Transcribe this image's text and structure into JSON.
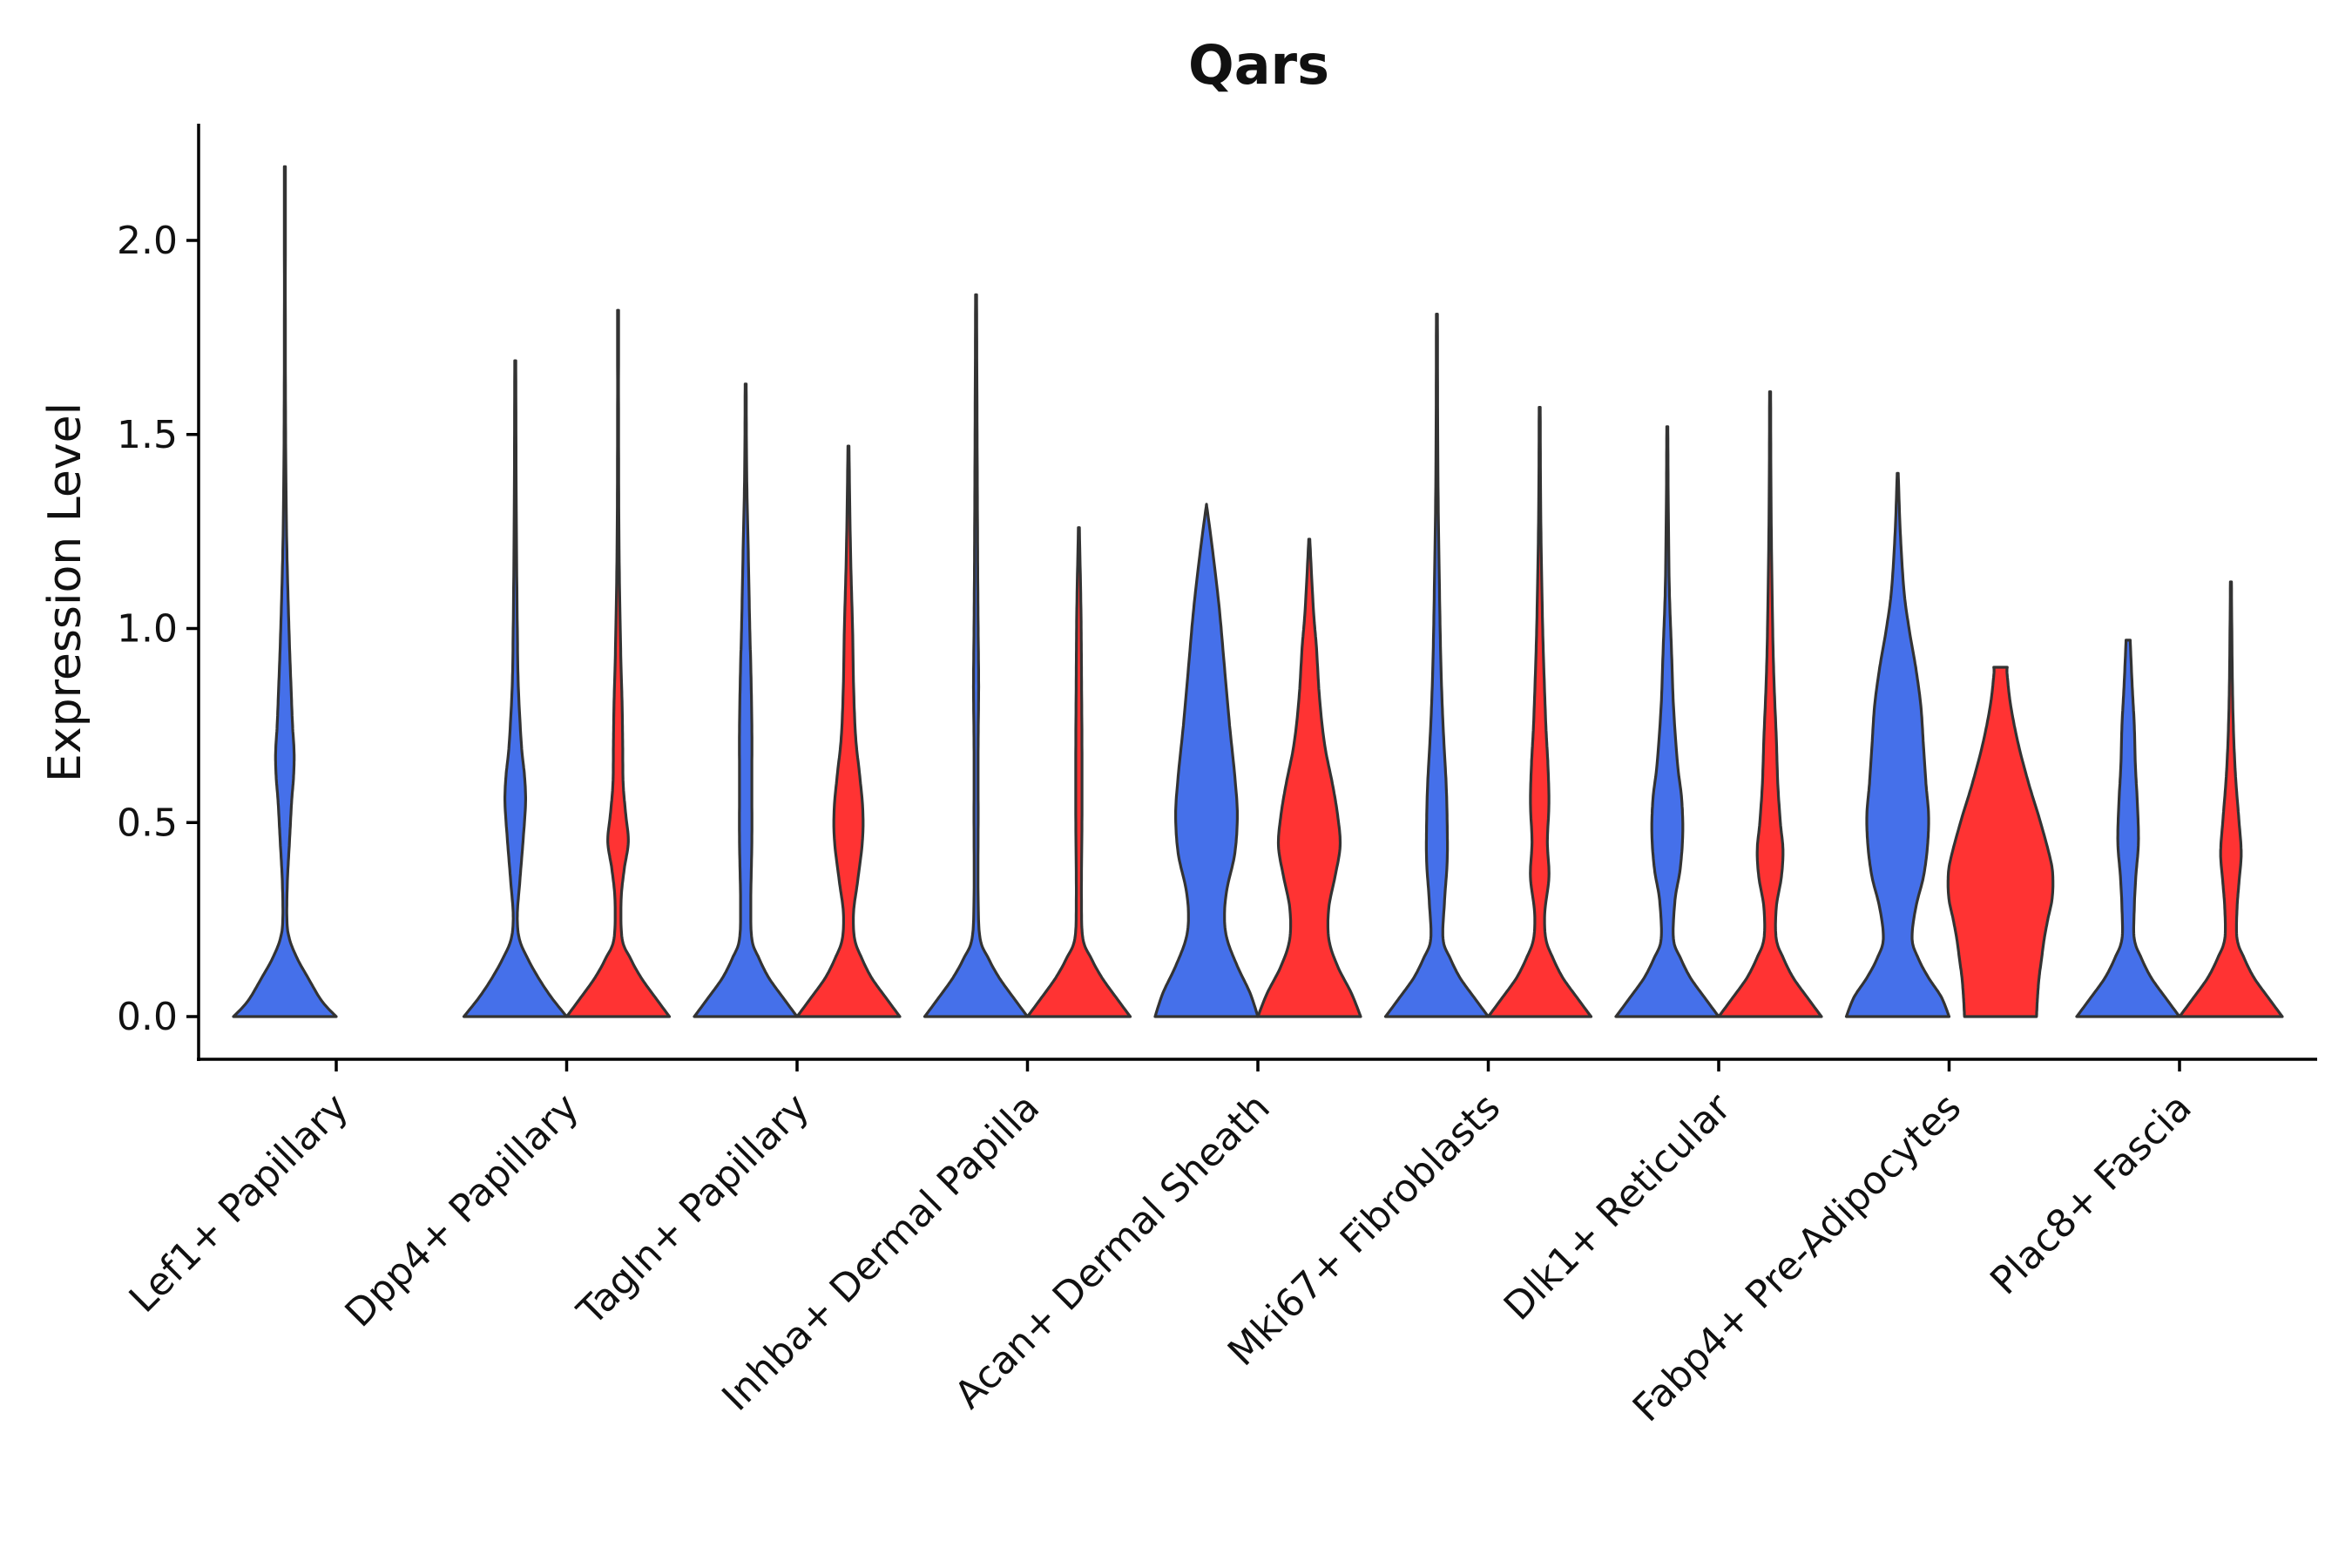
{
  "chart_data": {
    "type": "violin",
    "title": "Qars",
    "xlabel": "",
    "ylabel": "Expression Level",
    "ylim": [
      -0.11,
      2.3
    ],
    "yticks": [
      0.0,
      0.5,
      1.0,
      1.5,
      2.0
    ],
    "ytick_labels": [
      "0.0",
      "0.5",
      "1.0",
      "1.5",
      "2.0"
    ],
    "grid": false,
    "legend": "none",
    "series": [
      {
        "name": "group 1",
        "color": "#4570ea"
      },
      {
        "name": "group 2",
        "color": "#ff3333"
      }
    ],
    "categories": [
      "Lef1+ Papillary",
      "Dpp4+ Papillary",
      "Tagln+ Papillary",
      "Inhba+ Dermal Papilla",
      "Acan+ Dermal Sheath",
      "Mki67+ Fibroblasts",
      "Dlk1+ Reticular",
      "Fabp4+ Pre-Adipocytes",
      "Plac8+ Fascia"
    ],
    "violins": [
      {
        "category": "Lef1+ Papillary",
        "series": "group 1",
        "max": 2.19,
        "density": [
          [
            0,
            1.0
          ],
          [
            0.04,
            0.72
          ],
          [
            0.1,
            0.45
          ],
          [
            0.15,
            0.24
          ],
          [
            0.2,
            0.09
          ],
          [
            0.25,
            0.04
          ],
          [
            0.35,
            0.05
          ],
          [
            0.45,
            0.09
          ],
          [
            0.55,
            0.13
          ],
          [
            0.62,
            0.17
          ],
          [
            0.68,
            0.18
          ],
          [
            0.75,
            0.15
          ],
          [
            0.85,
            0.12
          ],
          [
            1.0,
            0.08
          ],
          [
            1.2,
            0.04
          ],
          [
            1.4,
            0.02
          ],
          [
            1.7,
            0.01
          ],
          [
            2.19,
            0.01
          ]
        ]
      },
      {
        "category": "Dpp4+ Papillary",
        "series": "group 1",
        "max": 1.69,
        "density": [
          [
            0,
            1.0
          ],
          [
            0.05,
            0.7
          ],
          [
            0.1,
            0.45
          ],
          [
            0.15,
            0.24
          ],
          [
            0.2,
            0.08
          ],
          [
            0.26,
            0.04
          ],
          [
            0.35,
            0.09
          ],
          [
            0.45,
            0.15
          ],
          [
            0.55,
            0.2
          ],
          [
            0.62,
            0.18
          ],
          [
            0.7,
            0.12
          ],
          [
            0.85,
            0.06
          ],
          [
            1.0,
            0.04
          ],
          [
            1.3,
            0.02
          ],
          [
            1.69,
            0.01
          ]
        ]
      },
      {
        "category": "Dpp4+ Papillary",
        "series": "group 2",
        "max": 1.82,
        "density": [
          [
            0,
            1.0
          ],
          [
            0.05,
            0.72
          ],
          [
            0.1,
            0.45
          ],
          [
            0.15,
            0.24
          ],
          [
            0.2,
            0.08
          ],
          [
            0.3,
            0.06
          ],
          [
            0.38,
            0.12
          ],
          [
            0.45,
            0.2
          ],
          [
            0.52,
            0.15
          ],
          [
            0.6,
            0.1
          ],
          [
            0.7,
            0.09
          ],
          [
            0.8,
            0.08
          ],
          [
            0.95,
            0.05
          ],
          [
            1.2,
            0.02
          ],
          [
            1.5,
            0.01
          ],
          [
            1.82,
            0.01
          ]
        ]
      },
      {
        "category": "Tagln+ Papillary",
        "series": "group 1",
        "max": 1.63,
        "density": [
          [
            0,
            1.0
          ],
          [
            0.05,
            0.72
          ],
          [
            0.1,
            0.45
          ],
          [
            0.15,
            0.26
          ],
          [
            0.2,
            0.12
          ],
          [
            0.3,
            0.1
          ],
          [
            0.45,
            0.12
          ],
          [
            0.6,
            0.12
          ],
          [
            0.75,
            0.12
          ],
          [
            0.9,
            0.1
          ],
          [
            1.0,
            0.08
          ],
          [
            1.2,
            0.05
          ],
          [
            1.4,
            0.02
          ],
          [
            1.63,
            0.01
          ]
        ]
      },
      {
        "category": "Tagln+ Papillary",
        "series": "group 2",
        "max": 1.47,
        "density": [
          [
            0,
            1.0
          ],
          [
            0.05,
            0.72
          ],
          [
            0.1,
            0.45
          ],
          [
            0.15,
            0.26
          ],
          [
            0.2,
            0.12
          ],
          [
            0.27,
            0.1
          ],
          [
            0.35,
            0.18
          ],
          [
            0.45,
            0.27
          ],
          [
            0.53,
            0.28
          ],
          [
            0.62,
            0.22
          ],
          [
            0.72,
            0.14
          ],
          [
            0.85,
            0.1
          ],
          [
            1.0,
            0.08
          ],
          [
            1.2,
            0.04
          ],
          [
            1.47,
            0.01
          ]
        ]
      },
      {
        "category": "Inhba+ Dermal Papilla",
        "series": "group 1",
        "max": 1.86,
        "density": [
          [
            0,
            1.0
          ],
          [
            0.05,
            0.72
          ],
          [
            0.1,
            0.45
          ],
          [
            0.15,
            0.24
          ],
          [
            0.2,
            0.08
          ],
          [
            0.3,
            0.04
          ],
          [
            0.5,
            0.04
          ],
          [
            0.7,
            0.04
          ],
          [
            0.85,
            0.05
          ],
          [
            1.0,
            0.04
          ],
          [
            1.2,
            0.03
          ],
          [
            1.5,
            0.02
          ],
          [
            1.86,
            0.01
          ]
        ]
      },
      {
        "category": "Inhba+ Dermal Papilla",
        "series": "group 2",
        "max": 1.26,
        "density": [
          [
            0,
            1.0
          ],
          [
            0.05,
            0.72
          ],
          [
            0.1,
            0.45
          ],
          [
            0.15,
            0.24
          ],
          [
            0.2,
            0.08
          ],
          [
            0.3,
            0.05
          ],
          [
            0.5,
            0.06
          ],
          [
            0.7,
            0.06
          ],
          [
            0.9,
            0.05
          ],
          [
            1.05,
            0.04
          ],
          [
            1.26,
            0.01
          ]
        ]
      },
      {
        "category": "Acan+ Dermal Sheath",
        "series": "group 1",
        "max": 1.32,
        "density": [
          [
            0,
            1.0
          ],
          [
            0.06,
            0.85
          ],
          [
            0.13,
            0.6
          ],
          [
            0.2,
            0.4
          ],
          [
            0.26,
            0.35
          ],
          [
            0.33,
            0.4
          ],
          [
            0.42,
            0.55
          ],
          [
            0.52,
            0.6
          ],
          [
            0.62,
            0.55
          ],
          [
            0.75,
            0.45
          ],
          [
            0.9,
            0.35
          ],
          [
            1.05,
            0.25
          ],
          [
            1.2,
            0.12
          ],
          [
            1.32,
            0.0
          ]
        ]
      },
      {
        "category": "Acan+ Dermal Sheath",
        "series": "group 2",
        "max": 1.23,
        "density": [
          [
            0,
            1.0
          ],
          [
            0.06,
            0.82
          ],
          [
            0.13,
            0.55
          ],
          [
            0.2,
            0.38
          ],
          [
            0.28,
            0.38
          ],
          [
            0.36,
            0.5
          ],
          [
            0.44,
            0.6
          ],
          [
            0.52,
            0.55
          ],
          [
            0.6,
            0.45
          ],
          [
            0.7,
            0.3
          ],
          [
            0.82,
            0.2
          ],
          [
            0.95,
            0.14
          ],
          [
            1.05,
            0.08
          ],
          [
            1.23,
            0.01
          ]
        ]
      },
      {
        "category": "Mki67+ Fibroblasts",
        "series": "group 1",
        "max": 1.81,
        "density": [
          [
            0,
            1.0
          ],
          [
            0.05,
            0.72
          ],
          [
            0.1,
            0.45
          ],
          [
            0.15,
            0.26
          ],
          [
            0.2,
            0.12
          ],
          [
            0.3,
            0.15
          ],
          [
            0.4,
            0.2
          ],
          [
            0.5,
            0.2
          ],
          [
            0.6,
            0.18
          ],
          [
            0.75,
            0.12
          ],
          [
            0.9,
            0.08
          ],
          [
            1.1,
            0.05
          ],
          [
            1.4,
            0.02
          ],
          [
            1.81,
            0.01
          ]
        ]
      },
      {
        "category": "Mki67+ Fibroblasts",
        "series": "group 2",
        "max": 1.57,
        "density": [
          [
            0,
            1.0
          ],
          [
            0.05,
            0.72
          ],
          [
            0.1,
            0.45
          ],
          [
            0.15,
            0.26
          ],
          [
            0.2,
            0.12
          ],
          [
            0.27,
            0.1
          ],
          [
            0.36,
            0.18
          ],
          [
            0.45,
            0.15
          ],
          [
            0.55,
            0.18
          ],
          [
            0.65,
            0.16
          ],
          [
            0.75,
            0.12
          ],
          [
            0.9,
            0.08
          ],
          [
            1.05,
            0.05
          ],
          [
            1.3,
            0.02
          ],
          [
            1.57,
            0.01
          ]
        ]
      },
      {
        "category": "Dlk1+ Reticular",
        "series": "group 1",
        "max": 1.52,
        "density": [
          [
            0,
            1.0
          ],
          [
            0.05,
            0.72
          ],
          [
            0.1,
            0.45
          ],
          [
            0.15,
            0.26
          ],
          [
            0.2,
            0.12
          ],
          [
            0.3,
            0.15
          ],
          [
            0.38,
            0.25
          ],
          [
            0.47,
            0.3
          ],
          [
            0.56,
            0.28
          ],
          [
            0.65,
            0.2
          ],
          [
            0.8,
            0.12
          ],
          [
            0.95,
            0.08
          ],
          [
            1.1,
            0.04
          ],
          [
            1.3,
            0.02
          ],
          [
            1.52,
            0.01
          ]
        ]
      },
      {
        "category": "Dlk1+ Reticular",
        "series": "group 2",
        "max": 1.61,
        "density": [
          [
            0,
            1.0
          ],
          [
            0.05,
            0.72
          ],
          [
            0.1,
            0.45
          ],
          [
            0.15,
            0.26
          ],
          [
            0.2,
            0.12
          ],
          [
            0.28,
            0.12
          ],
          [
            0.36,
            0.22
          ],
          [
            0.43,
            0.25
          ],
          [
            0.5,
            0.2
          ],
          [
            0.6,
            0.15
          ],
          [
            0.72,
            0.12
          ],
          [
            0.85,
            0.08
          ],
          [
            1.0,
            0.05
          ],
          [
            1.3,
            0.02
          ],
          [
            1.61,
            0.01
          ]
        ]
      },
      {
        "category": "Fabp4+ Pre-Adipocytes",
        "series": "group 1",
        "max": 1.4,
        "density": [
          [
            0,
            1.0
          ],
          [
            0.05,
            0.85
          ],
          [
            0.1,
            0.6
          ],
          [
            0.15,
            0.4
          ],
          [
            0.2,
            0.28
          ],
          [
            0.28,
            0.35
          ],
          [
            0.36,
            0.5
          ],
          [
            0.44,
            0.58
          ],
          [
            0.52,
            0.6
          ],
          [
            0.6,
            0.55
          ],
          [
            0.7,
            0.5
          ],
          [
            0.8,
            0.45
          ],
          [
            0.9,
            0.35
          ],
          [
            1.0,
            0.22
          ],
          [
            1.1,
            0.12
          ],
          [
            1.25,
            0.05
          ],
          [
            1.4,
            0.01
          ]
        ]
      },
      {
        "category": "Fabp4+ Pre-Adipocytes",
        "series": "group 2",
        "max": 0.9,
        "density": [
          [
            0,
            0.7
          ],
          [
            0.05,
            0.72
          ],
          [
            0.1,
            0.75
          ],
          [
            0.15,
            0.8
          ],
          [
            0.2,
            0.85
          ],
          [
            0.25,
            0.92
          ],
          [
            0.3,
            1.0
          ],
          [
            0.35,
            1.02
          ],
          [
            0.4,
            0.98
          ],
          [
            0.5,
            0.78
          ],
          [
            0.6,
            0.55
          ],
          [
            0.7,
            0.35
          ],
          [
            0.8,
            0.2
          ],
          [
            0.88,
            0.13
          ],
          [
            0.9,
            0.13
          ]
        ]
      },
      {
        "category": "Plac8+ Fascia",
        "series": "group 1",
        "max": 0.97,
        "density": [
          [
            0,
            1.0
          ],
          [
            0.05,
            0.72
          ],
          [
            0.1,
            0.45
          ],
          [
            0.15,
            0.26
          ],
          [
            0.2,
            0.12
          ],
          [
            0.28,
            0.12
          ],
          [
            0.36,
            0.15
          ],
          [
            0.45,
            0.2
          ],
          [
            0.55,
            0.18
          ],
          [
            0.65,
            0.14
          ],
          [
            0.75,
            0.12
          ],
          [
            0.85,
            0.08
          ],
          [
            0.97,
            0.04
          ]
        ]
      },
      {
        "category": "Plac8+ Fascia",
        "series": "group 2",
        "max": 1.12,
        "density": [
          [
            0,
            1.0
          ],
          [
            0.05,
            0.72
          ],
          [
            0.1,
            0.45
          ],
          [
            0.15,
            0.26
          ],
          [
            0.2,
            0.12
          ],
          [
            0.28,
            0.12
          ],
          [
            0.35,
            0.16
          ],
          [
            0.42,
            0.2
          ],
          [
            0.5,
            0.16
          ],
          [
            0.6,
            0.1
          ],
          [
            0.7,
            0.06
          ],
          [
            0.85,
            0.03
          ],
          [
            1.12,
            0.01
          ]
        ]
      }
    ]
  }
}
